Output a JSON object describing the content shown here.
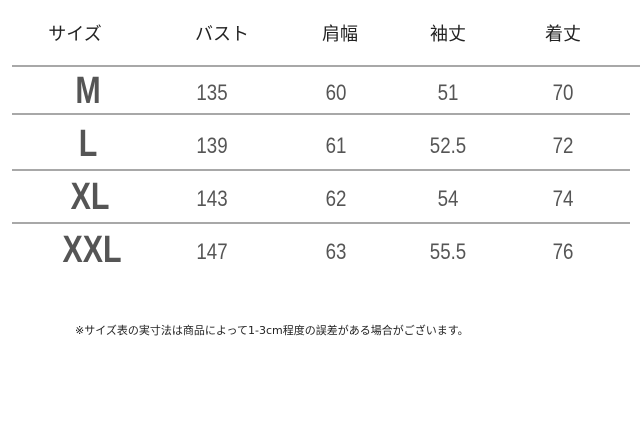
{
  "table": {
    "headers": [
      "サイズ",
      "バスト",
      "肩幅",
      "袖丈",
      "着丈"
    ],
    "rows": [
      {
        "size": "M",
        "values": [
          "135",
          "60",
          "51",
          "70"
        ]
      },
      {
        "size": "L",
        "values": [
          "139",
          "61",
          "52.5",
          "72"
        ]
      },
      {
        "size": "XL",
        "values": [
          "143",
          "62",
          "54",
          "74"
        ]
      },
      {
        "size": "XXL",
        "values": [
          "147",
          "63",
          "55.5",
          "76"
        ]
      }
    ]
  },
  "note": "※サイズ表の実寸法は商品によって1-3cm程度の誤差がある場合がございます。"
}
